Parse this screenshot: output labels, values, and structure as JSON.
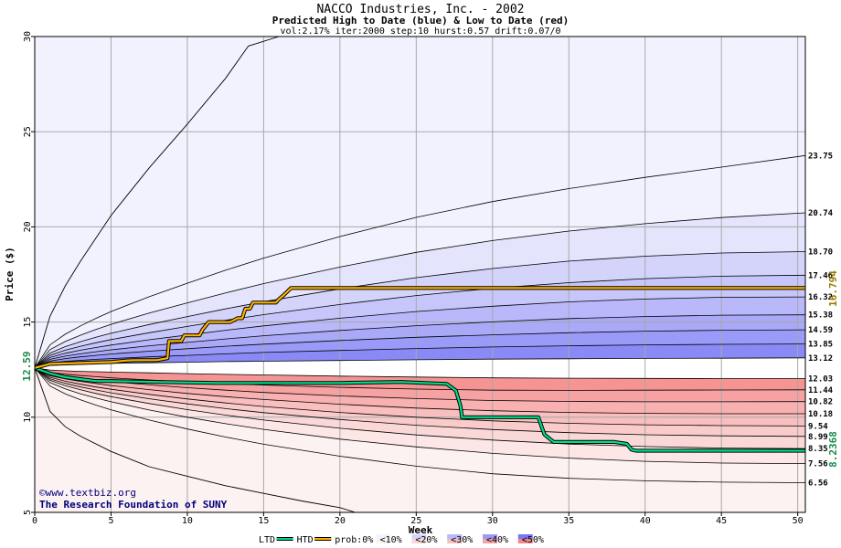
{
  "chart_data": {
    "type": "area",
    "title": "NACCO Industries, Inc. - 2002",
    "subtitle": "Predicted High to Date (blue) &  Low to Date (red)",
    "params": "vol:2.17% iter:2000 step:10 hurst:0.57 drift:0.07/0",
    "xlabel": "Week",
    "ylabel": "Price ($)",
    "xlim": [
      0,
      50.5
    ],
    "ylim": [
      5,
      30
    ],
    "xticks": [
      0,
      5,
      10,
      15,
      20,
      25,
      30,
      35,
      40,
      45,
      50
    ],
    "yticks": [
      5,
      10,
      15,
      20,
      25,
      30
    ],
    "grid": true,
    "start_price": 12.59,
    "start_label": "12.59",
    "x": [
      0,
      1,
      2,
      3,
      4,
      5,
      7.5,
      10,
      12.5,
      15,
      20,
      25,
      30,
      35,
      40,
      45,
      50.5
    ],
    "high_bands": [
      {
        "label": "13.12",
        "values": [
          12.59,
          12.72,
          12.76,
          12.79,
          12.81,
          12.83,
          12.86,
          12.89,
          12.92,
          12.94,
          12.98,
          13.02,
          13.05,
          13.07,
          13.09,
          13.1,
          13.12
        ]
      },
      {
        "label": "13.85",
        "values": [
          12.59,
          12.85,
          12.93,
          12.99,
          13.04,
          13.08,
          13.17,
          13.25,
          13.33,
          13.4,
          13.51,
          13.61,
          13.69,
          13.75,
          13.8,
          13.83,
          13.85
        ]
      },
      {
        "label": "14.59",
        "values": [
          12.59,
          12.95,
          13.08,
          13.17,
          13.25,
          13.32,
          13.47,
          13.6,
          13.73,
          13.84,
          14.03,
          14.2,
          14.33,
          14.44,
          14.52,
          14.57,
          14.59
        ]
      },
      {
        "label": "15.38",
        "values": [
          12.59,
          13.04,
          13.21,
          13.33,
          13.44,
          13.54,
          13.75,
          13.93,
          14.11,
          14.28,
          14.56,
          14.81,
          15.01,
          15.18,
          15.29,
          15.36,
          15.38
        ]
      },
      {
        "label": "16.32",
        "values": [
          12.59,
          13.14,
          13.36,
          13.52,
          13.66,
          13.79,
          14.07,
          14.32,
          14.57,
          14.8,
          15.2,
          15.55,
          15.83,
          16.06,
          16.21,
          16.3,
          16.32
        ]
      },
      {
        "label": "17.46",
        "values": [
          12.59,
          13.25,
          13.52,
          13.73,
          13.91,
          14.08,
          14.44,
          14.77,
          15.09,
          15.39,
          15.92,
          16.39,
          16.77,
          17.07,
          17.28,
          17.41,
          17.46
        ]
      },
      {
        "label": "18.70",
        "values": [
          12.59,
          13.37,
          13.71,
          13.97,
          14.2,
          14.41,
          14.87,
          15.29,
          15.69,
          16.07,
          16.74,
          17.33,
          17.81,
          18.2,
          18.46,
          18.63,
          18.7
        ]
      },
      {
        "label": "20.74",
        "values": [
          12.59,
          13.55,
          13.98,
          14.31,
          14.61,
          14.88,
          15.47,
          16.01,
          16.53,
          17.02,
          17.89,
          18.66,
          19.28,
          19.78,
          20.17,
          20.49,
          20.74
        ]
      },
      {
        "label": "23.75",
        "values": [
          12.59,
          13.8,
          14.36,
          14.8,
          15.19,
          15.55,
          16.33,
          17.04,
          17.72,
          18.36,
          19.49,
          20.5,
          21.33,
          22.01,
          22.6,
          23.14,
          23.75
        ]
      }
    ],
    "low_bands": [
      {
        "label": "12.03",
        "values": [
          12.59,
          12.48,
          12.44,
          12.41,
          12.39,
          12.37,
          12.33,
          12.29,
          12.25,
          12.22,
          12.16,
          12.11,
          12.07,
          12.05,
          12.04,
          12.03,
          12.03
        ]
      },
      {
        "label": "11.44",
        "values": [
          12.59,
          12.35,
          12.26,
          12.19,
          12.13,
          12.07,
          11.96,
          11.86,
          11.77,
          11.69,
          11.57,
          11.48,
          11.42,
          11.41,
          11.42,
          11.43,
          11.44
        ]
      },
      {
        "label": "10.82",
        "values": [
          12.59,
          12.27,
          12.14,
          12.04,
          11.95,
          11.87,
          11.7,
          11.55,
          11.42,
          11.3,
          11.12,
          10.98,
          10.88,
          10.83,
          10.81,
          10.81,
          10.82
        ]
      },
      {
        "label": "10.18",
        "values": [
          12.59,
          12.18,
          12.01,
          11.88,
          11.77,
          11.66,
          11.45,
          11.25,
          11.08,
          10.93,
          10.68,
          10.48,
          10.34,
          10.25,
          10.2,
          10.18,
          10.18
        ]
      },
      {
        "label": "9.54",
        "values": [
          12.59,
          12.1,
          11.89,
          11.73,
          11.59,
          11.47,
          11.2,
          10.96,
          10.75,
          10.56,
          10.25,
          10.0,
          9.81,
          9.68,
          9.6,
          9.56,
          9.54
        ]
      },
      {
        "label": "8.99",
        "values": [
          12.59,
          12.02,
          11.78,
          11.59,
          11.43,
          11.28,
          10.97,
          10.7,
          10.45,
          10.24,
          9.88,
          9.58,
          9.35,
          9.19,
          9.08,
          9.02,
          8.99
        ]
      },
      {
        "label": "8.35",
        "values": [
          12.59,
          11.94,
          11.66,
          11.44,
          11.25,
          11.08,
          10.72,
          10.4,
          10.11,
          9.85,
          9.42,
          9.07,
          8.8,
          8.59,
          8.46,
          8.38,
          8.35
        ]
      },
      {
        "label": "7.56",
        "values": [
          12.59,
          11.82,
          11.49,
          11.23,
          11.01,
          10.81,
          10.38,
          10.0,
          9.66,
          9.36,
          8.85,
          8.44,
          8.1,
          7.85,
          7.68,
          7.59,
          7.56
        ]
      },
      {
        "label": "6.56",
        "values": [
          12.59,
          11.64,
          11.23,
          10.91,
          10.64,
          10.39,
          9.85,
          9.38,
          8.96,
          8.58,
          7.95,
          7.43,
          7.03,
          6.79,
          6.66,
          6.59,
          6.56
        ]
      }
    ],
    "outer_high": {
      "x": [
        0,
        1,
        2,
        3,
        4,
        5,
        7.5,
        10,
        12.5,
        14,
        16
      ],
      "values": [
        12.59,
        15.3,
        16.9,
        18.2,
        19.4,
        20.6,
        23.1,
        25.4,
        27.8,
        29.5,
        30
      ]
    },
    "outer_low": {
      "x": [
        0,
        1,
        2,
        3,
        5,
        7.5,
        10,
        12.5,
        15,
        17.5,
        20,
        21
      ],
      "values": [
        12.59,
        10.3,
        9.5,
        9.0,
        8.2,
        7.4,
        6.9,
        6.4,
        6.0,
        5.6,
        5.25,
        5
      ]
    },
    "htd_series": {
      "name": "HTD",
      "end_label": "16.794",
      "color": "#ffb400",
      "x": [
        0,
        1,
        3,
        5,
        6,
        6.5,
        8,
        8.7,
        8.8,
        9.6,
        9.8,
        10.8,
        11,
        11.4,
        12.8,
        13.3,
        13.6,
        13.8,
        14.1,
        14.3,
        15.8,
        16.0,
        16.3,
        16.8,
        17,
        30,
        45,
        50.5
      ],
      "values": [
        12.59,
        12.8,
        12.85,
        12.9,
        12.98,
        13.0,
        13.0,
        13.1,
        14.0,
        14.0,
        14.3,
        14.3,
        14.6,
        15.0,
        15.0,
        15.2,
        15.2,
        15.7,
        15.7,
        16.02,
        16.02,
        16.2,
        16.4,
        16.79,
        16.79,
        16.79,
        16.79,
        16.79
      ]
    },
    "ltd_series": {
      "name": "LTD",
      "end_label": "8.2368",
      "color": "#00dd88",
      "x": [
        0,
        1,
        2,
        3,
        4,
        5,
        8,
        12,
        16,
        20,
        24,
        27,
        27.6,
        27.9,
        28,
        33,
        33.4,
        34,
        38,
        38.8,
        39.1,
        39.4,
        45,
        50.5
      ],
      "values": [
        12.59,
        12.3,
        12.1,
        12.0,
        11.9,
        11.9,
        11.85,
        11.8,
        11.8,
        11.8,
        11.85,
        11.75,
        11.4,
        10.6,
        10.0,
        10.0,
        9.1,
        8.7,
        8.7,
        8.6,
        8.3,
        8.24,
        8.24,
        8.24
      ]
    },
    "band_fills": {
      "high": [
        "#6a6af4",
        "#7878f6",
        "#8a8af7",
        "#9a9af8",
        "#a9a9f8",
        "#b8b8fa",
        "#c6c6fa",
        "#d4d4fb",
        "#e4e4fc",
        "#f2f2fe"
      ],
      "low": [
        "#f37878",
        "#f48686",
        "#f69494",
        "#f7a2a2",
        "#f8b0b0",
        "#f9bebe",
        "#facbcb",
        "#fbd8d8",
        "#fce6e6",
        "#fdf2f2"
      ]
    },
    "legend": [
      {
        "label": "LTD",
        "kind": "line",
        "color": "#00dd88"
      },
      {
        "label": "HTD",
        "kind": "line",
        "color": "#ffb400"
      },
      {
        "label": "prob:0%",
        "kind": "text"
      },
      {
        "label": "<10%",
        "kind": "swatch",
        "color_top": "#f2f2fe",
        "color_bottom": "#fdf2f2"
      },
      {
        "label": "<20%",
        "kind": "swatch",
        "color_top": "#d4d4fb",
        "color_bottom": "#fbd8d8"
      },
      {
        "label": "<30%",
        "kind": "swatch",
        "color_top": "#b8b8fa",
        "color_bottom": "#f9bebe"
      },
      {
        "label": "<40%",
        "kind": "swatch",
        "color_top": "#9a9af8",
        "color_bottom": "#f7a2a2"
      },
      {
        "label": "<50%",
        "kind": "swatch",
        "color_top": "#7878f6",
        "color_bottom": "#f48686"
      }
    ]
  },
  "credits": {
    "line1": "©www.textbiz.org",
    "line2": "The Research Foundation of SUNY"
  }
}
